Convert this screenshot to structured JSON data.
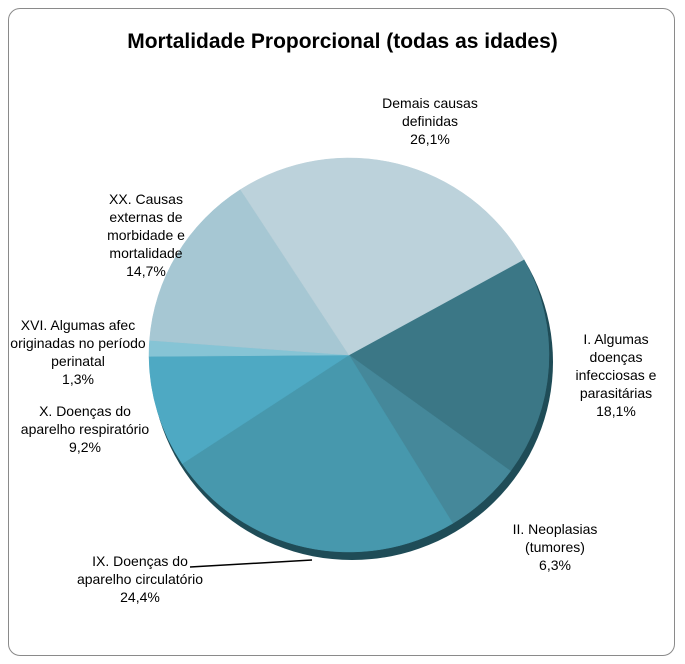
{
  "chart_data": {
    "type": "pie",
    "title": "Mortalidade Proporcional (todas as idades)",
    "categories": [
      "I.  Algumas doenças infecciosas e parasitárias",
      "II.  Neoplasias (tumores)",
      "IX.  Doenças do aparelho circulatório",
      "X.  Doenças do aparelho respiratório",
      "XVI. Algumas afec originadas no período perinatal",
      "XX.  Causas externas de morbidade e mortalidade",
      "Demais causas definidas"
    ],
    "values": [
      18.1,
      6.3,
      24.4,
      9.2,
      1.3,
      14.7,
      26.1
    ],
    "value_labels": [
      "18,1%",
      "6,3%",
      "24,4%",
      "9,2%",
      "1,3%",
      "14,7%",
      "26,1%"
    ],
    "colors": [
      "#3b7786",
      "#45889a",
      "#4798ad",
      "#4ea9c3",
      "#86c4d5",
      "#a6c7d3",
      "#bcd2db"
    ]
  }
}
